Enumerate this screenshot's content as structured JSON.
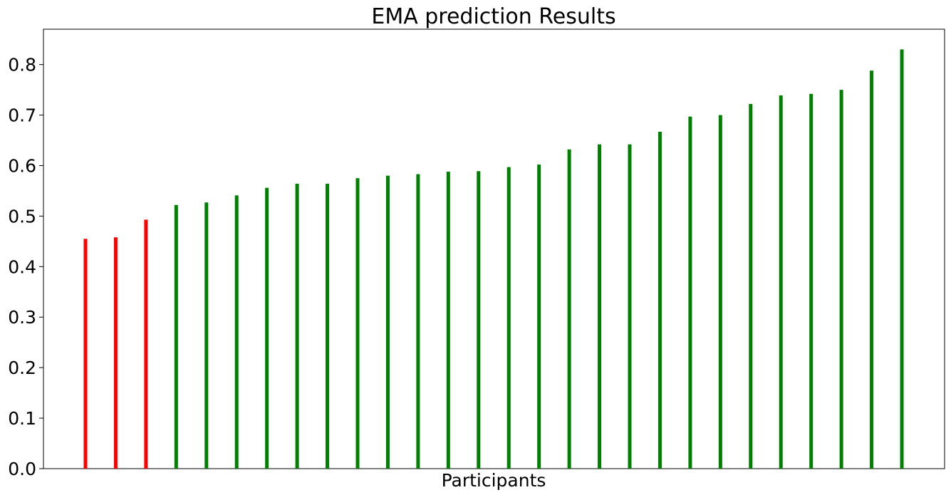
{
  "chart_data": {
    "type": "bar",
    "title": "EMA prediction Results",
    "xlabel": "Participants",
    "ylabel": "",
    "ylim": [
      0,
      0.87
    ],
    "yticks": [
      "0.0",
      "0.1",
      "0.2",
      "0.3",
      "0.4",
      "0.5",
      "0.6",
      "0.7",
      "0.8"
    ],
    "ytick_values": [
      0.0,
      0.1,
      0.2,
      0.3,
      0.4,
      0.5,
      0.6,
      0.7,
      0.8
    ],
    "grid": false,
    "legend": "none",
    "colors": {
      "below_threshold": "#ff0000",
      "above_threshold": "#008000"
    },
    "values": [
      0.455,
      0.458,
      0.493,
      0.522,
      0.527,
      0.541,
      0.556,
      0.564,
      0.564,
      0.575,
      0.58,
      0.583,
      0.588,
      0.589,
      0.597,
      0.602,
      0.632,
      0.642,
      0.642,
      0.667,
      0.697,
      0.7,
      0.722,
      0.739,
      0.742,
      0.75,
      0.788,
      0.83
    ],
    "bar_colors": [
      "#ff0000",
      "#ff0000",
      "#ff0000",
      "#008000",
      "#008000",
      "#008000",
      "#008000",
      "#008000",
      "#008000",
      "#008000",
      "#008000",
      "#008000",
      "#008000",
      "#008000",
      "#008000",
      "#008000",
      "#008000",
      "#008000",
      "#008000",
      "#008000",
      "#008000",
      "#008000",
      "#008000",
      "#008000",
      "#008000",
      "#008000",
      "#008000",
      "#008000"
    ]
  }
}
